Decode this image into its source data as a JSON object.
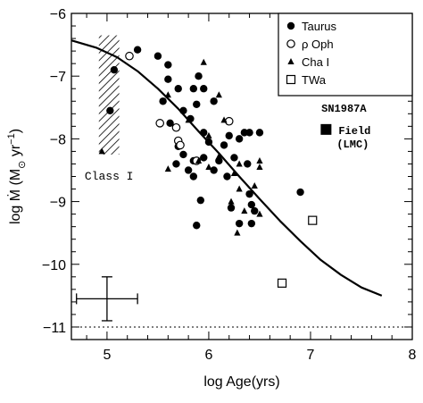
{
  "chart_data": {
    "type": "scatter",
    "title": "",
    "xlabel": "log Age(yrs)",
    "ylabel_parts": {
      "main": "log Ṁ (M",
      "unit_sub": "⊙",
      "unit_rest": " yr",
      "exp": "−1",
      "close": ")"
    },
    "xlim": [
      4.65,
      8.0
    ],
    "ylim": [
      -11.2,
      -6.0
    ],
    "x_ticks": [
      5,
      6,
      7,
      8
    ],
    "x_tick_labels": [
      "5",
      "6",
      "7",
      "8"
    ],
    "y_ticks": [
      -6,
      -7,
      -8,
      -9,
      -10,
      -11
    ],
    "y_tick_labels": [
      "−6",
      "−7",
      "−8",
      "−9",
      "−10",
      "−11"
    ],
    "legend": {
      "placement": "top-right",
      "entries": [
        {
          "marker": "filled-circle",
          "label": "Taurus"
        },
        {
          "marker": "open-circle",
          "label": "ρ Oph"
        },
        {
          "marker": "filled-triangle",
          "label": "Cha I"
        },
        {
          "marker": "open-square",
          "label": "TWa"
        }
      ]
    },
    "series": [
      {
        "name": "Taurus",
        "marker": "filled-circle",
        "points": [
          [
            5.07,
            -6.9
          ],
          [
            5.03,
            -7.55
          ],
          [
            5.3,
            -6.58
          ],
          [
            5.5,
            -6.68
          ],
          [
            5.6,
            -6.82
          ],
          [
            5.6,
            -7.05
          ],
          [
            5.55,
            -7.4
          ],
          [
            5.7,
            -7.2
          ],
          [
            5.75,
            -7.55
          ],
          [
            5.62,
            -7.75
          ],
          [
            5.9,
            -7.0
          ],
          [
            5.85,
            -7.2
          ],
          [
            5.95,
            -7.2
          ],
          [
            5.88,
            -7.45
          ],
          [
            6.05,
            -7.4
          ],
          [
            5.82,
            -7.68
          ],
          [
            5.95,
            -7.9
          ],
          [
            5.7,
            -8.12
          ],
          [
            5.75,
            -8.25
          ],
          [
            5.68,
            -8.4
          ],
          [
            5.85,
            -8.35
          ],
          [
            5.85,
            -8.6
          ],
          [
            5.95,
            -8.3
          ],
          [
            6.05,
            -8.5
          ],
          [
            6.1,
            -8.35
          ],
          [
            5.8,
            -8.5
          ],
          [
            6.0,
            -8.05
          ],
          [
            6.2,
            -7.95
          ],
          [
            6.15,
            -8.1
          ],
          [
            6.3,
            -8.0
          ],
          [
            6.35,
            -7.9
          ],
          [
            6.4,
            -7.9
          ],
          [
            6.5,
            -7.9
          ],
          [
            6.25,
            -8.3
          ],
          [
            6.38,
            -8.4
          ],
          [
            6.18,
            -8.6
          ],
          [
            6.4,
            -8.88
          ],
          [
            6.42,
            -9.05
          ],
          [
            6.45,
            -9.15
          ],
          [
            6.22,
            -9.1
          ],
          [
            6.3,
            -9.35
          ],
          [
            6.42,
            -9.35
          ],
          [
            5.92,
            -8.98
          ],
          [
            5.88,
            -9.38
          ],
          [
            6.9,
            -8.85
          ]
        ]
      },
      {
        "name": "ρ Oph",
        "marker": "open-circle",
        "points": [
          [
            5.22,
            -6.68
          ],
          [
            5.52,
            -7.75
          ],
          [
            5.68,
            -7.82
          ],
          [
            5.7,
            -8.03
          ],
          [
            5.88,
            -8.35
          ],
          [
            6.2,
            -7.72
          ],
          [
            5.72,
            -8.1
          ]
        ]
      },
      {
        "name": "Cha I",
        "marker": "filled-triangle",
        "points": [
          [
            5.6,
            -7.3
          ],
          [
            5.8,
            -7.7
          ],
          [
            6.1,
            -7.3
          ],
          [
            6.15,
            -7.7
          ],
          [
            6.0,
            -7.95
          ],
          [
            5.9,
            -8.35
          ],
          [
            6.0,
            -8.45
          ],
          [
            6.3,
            -8.4
          ],
          [
            6.5,
            -8.45
          ],
          [
            6.25,
            -8.55
          ],
          [
            6.3,
            -8.8
          ],
          [
            6.45,
            -8.75
          ],
          [
            6.22,
            -9.0
          ],
          [
            6.35,
            -9.15
          ],
          [
            6.5,
            -9.2
          ],
          [
            6.28,
            -9.5
          ],
          [
            5.6,
            -8.48
          ],
          [
            5.95,
            -6.78
          ],
          [
            6.1,
            -8.28
          ],
          [
            6.5,
            -8.35
          ],
          [
            4.95,
            -8.2
          ]
        ]
      },
      {
        "name": "TWa",
        "marker": "open-square",
        "points": [
          [
            7.02,
            -9.3
          ],
          [
            6.72,
            -10.3
          ]
        ]
      }
    ],
    "model_curve": {
      "x": [
        4.65,
        4.9,
        5.1,
        5.3,
        5.5,
        5.7,
        5.9,
        6.1,
        6.3,
        6.5,
        6.7,
        6.9,
        7.1,
        7.3,
        7.5,
        7.7
      ],
      "y": [
        -6.43,
        -6.55,
        -6.7,
        -6.92,
        -7.2,
        -7.52,
        -7.88,
        -8.23,
        -8.6,
        -8.96,
        -9.31,
        -9.63,
        -9.93,
        -10.17,
        -10.37,
        -10.5
      ]
    },
    "class_i_band": {
      "x_range": [
        4.92,
        5.12
      ],
      "y_range": [
        -6.35,
        -8.25
      ],
      "label": "Class I"
    },
    "error_bar": {
      "x": 5.0,
      "y": -10.55,
      "dx": 0.3,
      "dy": 0.35
    },
    "reference_line": {
      "y": -11.0,
      "style": "dotted"
    },
    "sn1987a": {
      "point": [
        7.1,
        -7.85
      ],
      "marker": "filled-square",
      "label_lines": [
        "SN1987A",
        "Field",
        "(LMC)"
      ]
    }
  }
}
